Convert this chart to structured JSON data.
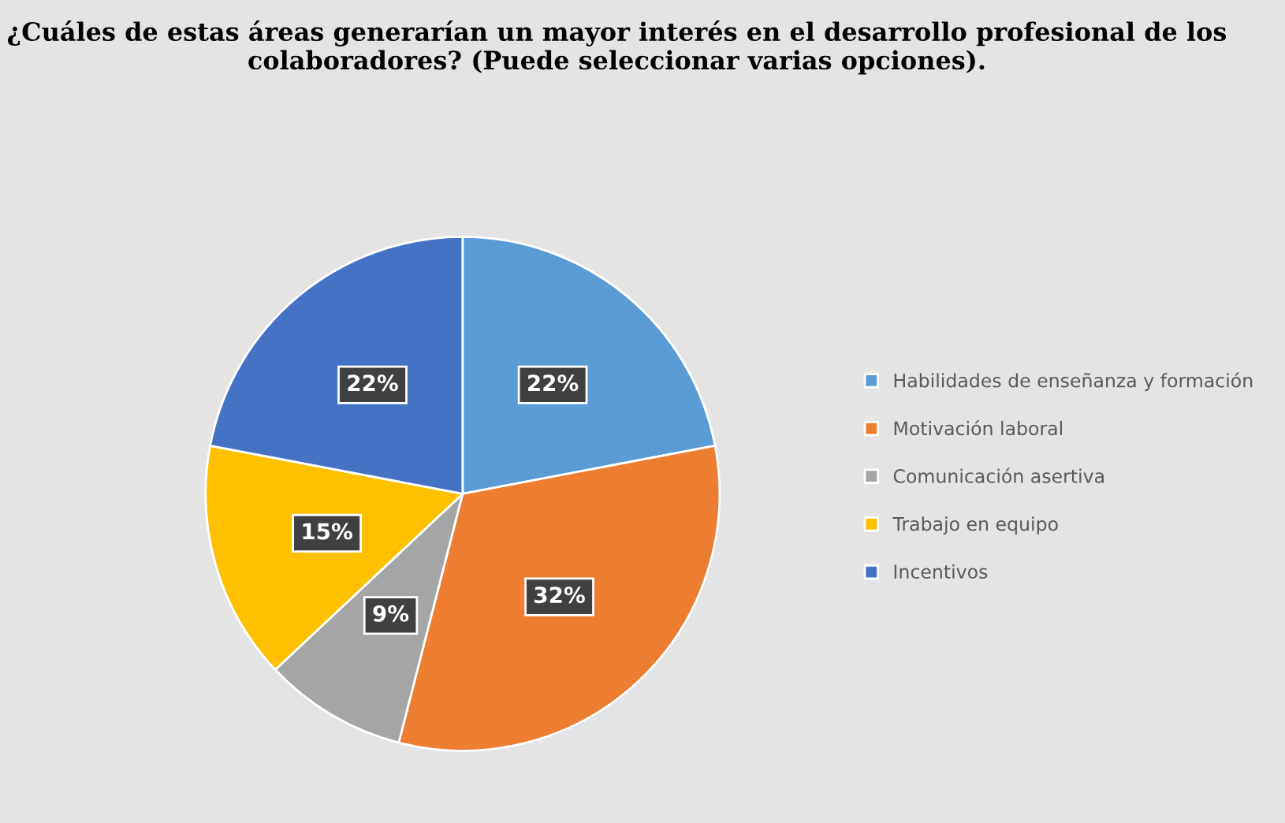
{
  "chart_data": {
    "type": "pie",
    "title": "¿Cuáles de estas áreas generarían un mayor interés en el desarrollo profesional de los colaboradores? (Puede seleccionar varias opciones).",
    "categories": [
      "Habilidades de enseñanza y formación",
      "Motivación laboral",
      "Comunicación asertiva",
      "Trabajo en equipo",
      "Incentivos"
    ],
    "values": [
      22,
      32,
      9,
      15,
      22
    ],
    "colors": [
      "#5b9bd5",
      "#ed7d31",
      "#a5a5a5",
      "#ffc000",
      "#4472c4"
    ],
    "value_labels": [
      "22%",
      "32%",
      "9%",
      "15%",
      "22%"
    ],
    "legend": "right"
  }
}
